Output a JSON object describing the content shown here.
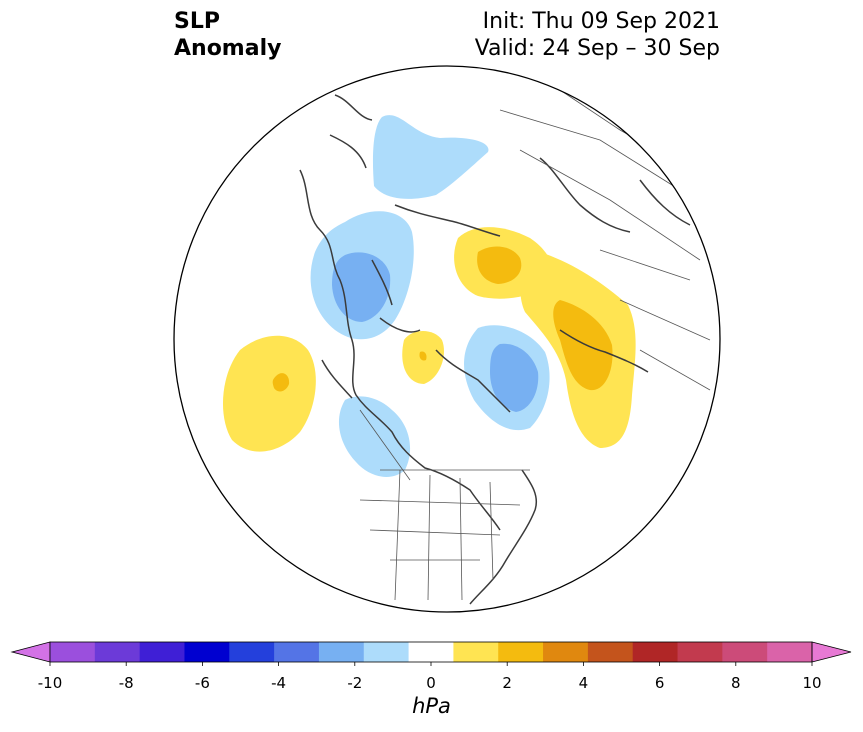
{
  "title": {
    "left_line1": "SLP",
    "left_line2": "Anomaly",
    "right_line1": "Init: Thu 09 Sep 2021",
    "right_line2": "Valid: 24 Sep – 30 Sep"
  },
  "colorbar": {
    "unit": "hPa",
    "tick_labels": [
      "-10",
      "-8",
      "-6",
      "-4",
      "-2",
      "0",
      "2",
      "4",
      "6",
      "8",
      "10"
    ],
    "levels": [
      -10,
      -9,
      -8,
      -7,
      -6,
      -5,
      -4,
      -3,
      -2,
      -1,
      1,
      2,
      3,
      4,
      5,
      6,
      7,
      8,
      9,
      10
    ],
    "colors": [
      "#d372e6",
      "#9b4fdd",
      "#6c3ad8",
      "#3f1fd6",
      "#0000d0",
      "#2440dc",
      "#5474e6",
      "#77b0f2",
      "#addcfb",
      "#ffffff",
      "#ffe452",
      "#f4bb0f",
      "#e0880f",
      "#c4541c",
      "#b02626",
      "#c23a4e",
      "#cc4b79",
      "#da63a9",
      "#e779d4"
    ],
    "extend": "both"
  },
  "map": {
    "projection": "north-polar-stereographic",
    "region": "Northern Hemisphere",
    "anomaly_features": [
      {
        "name": "negative anomaly",
        "region": "Scandinavia / Norwegian Sea",
        "min_value": -2
      },
      {
        "name": "negative anomaly",
        "region": "Northern Europe / Baltic",
        "min_value": -3
      },
      {
        "name": "positive anomaly",
        "region": "Northwestern Russia / Kara Sea",
        "max_value": 3
      },
      {
        "name": "positive anomaly",
        "region": "Central Asia",
        "max_value": 3
      },
      {
        "name": "negative anomaly",
        "region": "East Siberian Arctic",
        "min_value": -3
      },
      {
        "name": "positive anomaly",
        "region": "Arctic Ocean",
        "max_value": 2
      },
      {
        "name": "positive anomaly",
        "region": "North Pacific",
        "max_value": 3
      },
      {
        "name": "negative anomaly",
        "region": "Gulf of Alaska / NW Canada",
        "min_value": -2
      }
    ],
    "colors": {
      "boundary": "#000000",
      "coastline": "#3b3b3b",
      "borders": "#555555",
      "background": "#ffffff"
    }
  }
}
